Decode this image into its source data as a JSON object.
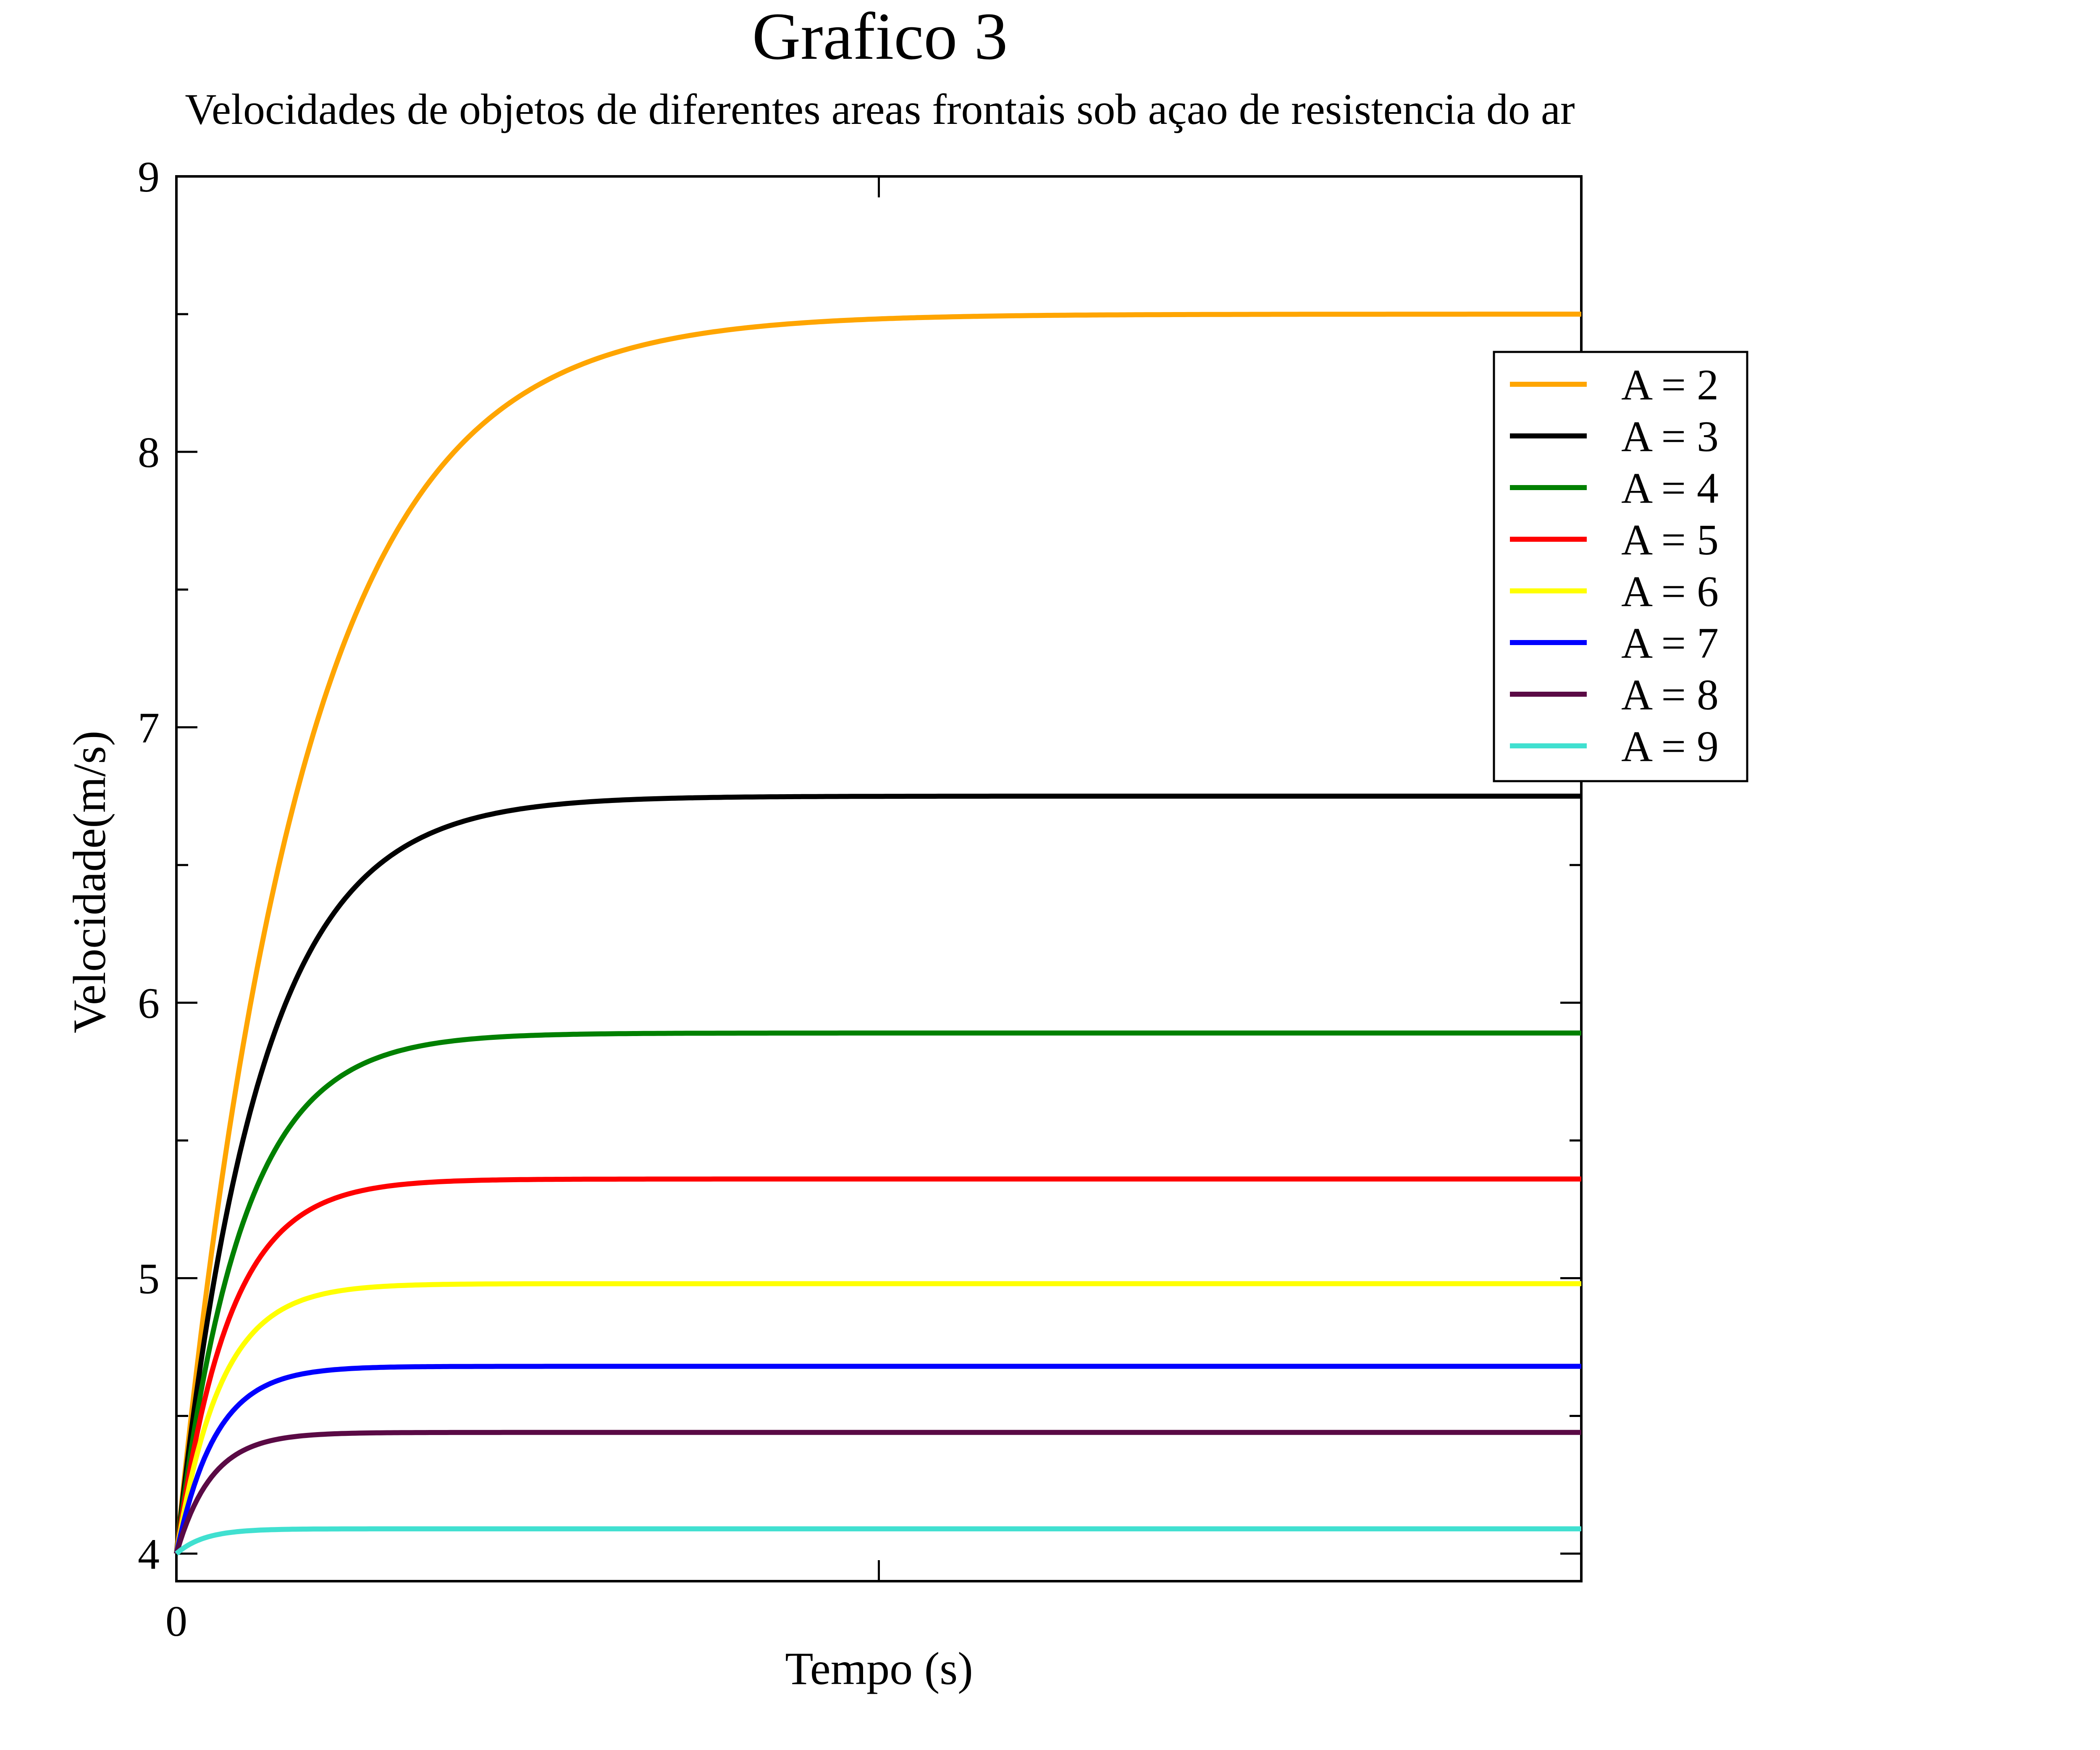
{
  "chart_data": {
    "type": "line",
    "title": "Grafico 3",
    "subtitle": "Velocidades de objetos de diferentes areas frontais sob açao de resistencia do ar",
    "xlabel": "Tempo (s)",
    "ylabel": "Velocidade(m/s)",
    "xlim": [
      0,
      1
    ],
    "ylim": [
      3.9,
      9
    ],
    "yticks": [
      4,
      5,
      6,
      7,
      8,
      9
    ],
    "xtick_labels": [
      "0"
    ],
    "grid": false,
    "legend_position": "top-right",
    "v0": 4.0,
    "series": [
      {
        "name": "A = 2",
        "color": "#FFA500",
        "v_terminal": 8.5,
        "time_constant": 0.09
      },
      {
        "name": "A = 3",
        "color": "#000000",
        "v_terminal": 6.75,
        "time_constant": 0.06
      },
      {
        "name": "A = 4",
        "color": "#008000",
        "v_terminal": 5.89,
        "time_constant": 0.047
      },
      {
        "name": "A = 5",
        "color": "#FF0000",
        "v_terminal": 5.36,
        "time_constant": 0.038
      },
      {
        "name": "A = 6",
        "color": "#FFFF00",
        "v_terminal": 4.98,
        "time_constant": 0.032
      },
      {
        "name": "A = 7",
        "color": "#0000FF",
        "v_terminal": 4.68,
        "time_constant": 0.028
      },
      {
        "name": "A = 8",
        "color": "#5A0A45",
        "v_terminal": 4.44,
        "time_constant": 0.025
      },
      {
        "name": "A = 9",
        "color": "#40E0D0",
        "v_terminal": 4.09,
        "time_constant": 0.02
      }
    ]
  }
}
